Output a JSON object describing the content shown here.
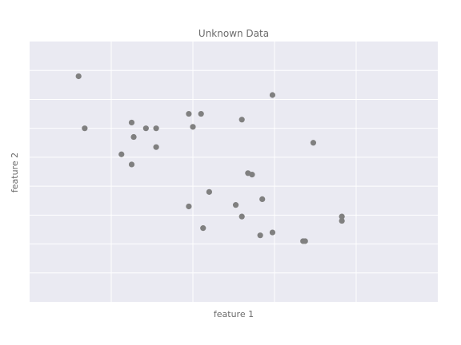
{
  "chart_data": {
    "type": "scatter",
    "title": "Unknown Data",
    "xlabel": "feature 1",
    "ylabel": "feature 2",
    "xlim": [
      0,
      10
    ],
    "ylim": [
      0,
      9
    ],
    "grid": true,
    "tick_labels_visible": false,
    "point_color": "#808080",
    "background_color": "#eaeaf2",
    "grid_color": "#ffffff",
    "points": [
      {
        "x": 1.2,
        "y": 7.8
      },
      {
        "x": 1.35,
        "y": 6.0
      },
      {
        "x": 2.25,
        "y": 5.1
      },
      {
        "x": 2.5,
        "y": 6.2
      },
      {
        "x": 2.55,
        "y": 5.7
      },
      {
        "x": 2.5,
        "y": 4.75
      },
      {
        "x": 2.85,
        "y": 6.0
      },
      {
        "x": 3.1,
        "y": 6.0
      },
      {
        "x": 3.1,
        "y": 5.35
      },
      {
        "x": 3.9,
        "y": 3.3
      },
      {
        "x": 3.9,
        "y": 6.5
      },
      {
        "x": 4.0,
        "y": 6.05
      },
      {
        "x": 4.2,
        "y": 6.5
      },
      {
        "x": 4.4,
        "y": 3.8
      },
      {
        "x": 4.25,
        "y": 2.55
      },
      {
        "x": 5.05,
        "y": 3.35
      },
      {
        "x": 5.2,
        "y": 2.95
      },
      {
        "x": 5.2,
        "y": 6.3
      },
      {
        "x": 5.35,
        "y": 4.45
      },
      {
        "x": 5.45,
        "y": 4.4
      },
      {
        "x": 5.65,
        "y": 2.3
      },
      {
        "x": 5.7,
        "y": 3.55
      },
      {
        "x": 5.95,
        "y": 7.15
      },
      {
        "x": 5.95,
        "y": 2.4
      },
      {
        "x": 6.95,
        "y": 5.5
      },
      {
        "x": 6.7,
        "y": 2.1
      },
      {
        "x": 6.75,
        "y": 2.1
      },
      {
        "x": 7.65,
        "y": 2.95
      },
      {
        "x": 7.65,
        "y": 2.8
      }
    ]
  }
}
